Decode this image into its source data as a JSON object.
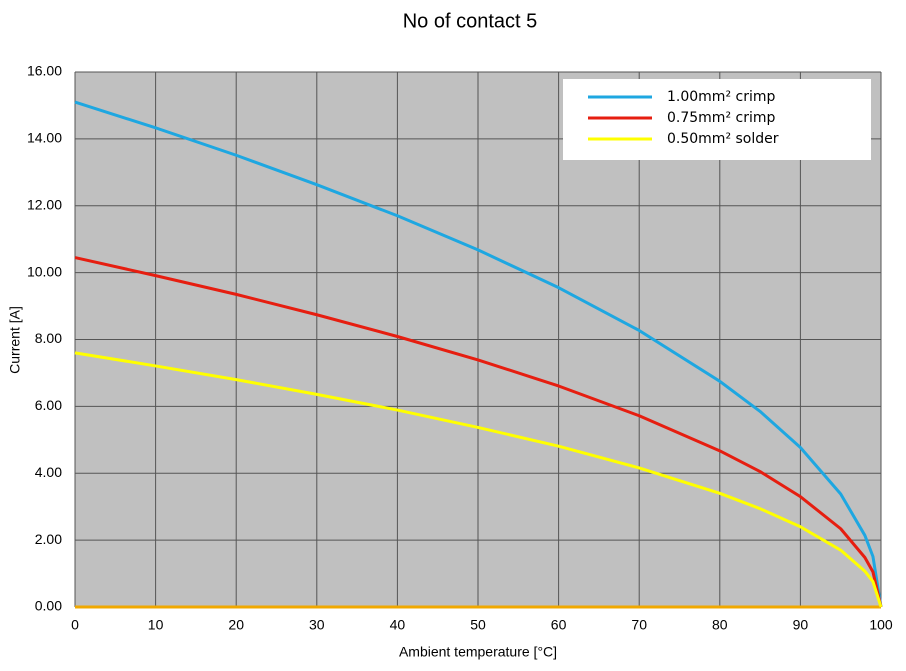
{
  "chart_data": {
    "type": "line",
    "title": "No of contact 5",
    "x_label": "Ambient temperature [°C]",
    "y_label": "Current [A]",
    "x": [
      0,
      10,
      20,
      30,
      40,
      50,
      60,
      70,
      80,
      85,
      90,
      95,
      98,
      99,
      100
    ],
    "series": [
      {
        "name": "1.00mm²  crimp",
        "color": "#1ea7e1",
        "values": [
          15.1,
          14.33,
          13.51,
          12.63,
          11.7,
          10.68,
          9.55,
          8.27,
          6.75,
          5.85,
          4.77,
          3.38,
          2.14,
          1.51,
          0
        ]
      },
      {
        "name": "0.75mm²  crimp",
        "color": "#e61e10",
        "values": [
          10.45,
          9.91,
          9.35,
          8.74,
          8.09,
          7.39,
          6.61,
          5.72,
          4.67,
          4.05,
          3.3,
          2.34,
          1.48,
          1.05,
          0
        ]
      },
      {
        "name": "0.50mm²  solder",
        "color": "#ffff00",
        "values": [
          7.6,
          7.21,
          6.8,
          6.36,
          5.89,
          5.37,
          4.81,
          4.16,
          3.4,
          2.94,
          2.4,
          1.7,
          1.07,
          0.76,
          0
        ]
      }
    ],
    "xlim": [
      0,
      100
    ],
    "xticks": [
      0,
      10,
      20,
      30,
      40,
      50,
      60,
      70,
      80,
      90,
      100
    ],
    "ylim": [
      0,
      16
    ],
    "yticks": [
      {
        "value": 0,
        "label": "0.00"
      },
      {
        "value": 2,
        "label": "2.00"
      },
      {
        "value": 4,
        "label": "4.00"
      },
      {
        "value": 6,
        "label": "6.00"
      },
      {
        "value": 8,
        "label": "8.00"
      },
      {
        "value": 10,
        "label": "10.00"
      },
      {
        "value": 12,
        "label": "12.00"
      },
      {
        "value": 14,
        "label": "14.00"
      },
      {
        "value": 16,
        "label": "16.00"
      }
    ],
    "grid": true,
    "legend": "upper right"
  }
}
